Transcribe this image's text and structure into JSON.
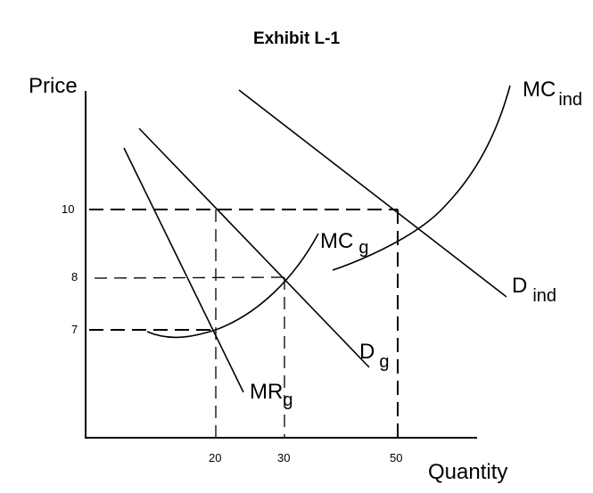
{
  "title": "Exhibit L-1",
  "axes": {
    "y_label": "Price",
    "x_label": "Quantity"
  },
  "price_ticks": [
    "10",
    "8",
    "7"
  ],
  "quantity_ticks": [
    "20",
    "30",
    "50"
  ],
  "curves": {
    "mc_ind": {
      "main": "MC",
      "sub": "ind"
    },
    "d_ind": {
      "main": "D",
      "sub": "ind"
    },
    "mc_g": {
      "main": "MC",
      "sub": "g"
    },
    "d_g": {
      "main": "D",
      "sub": "g"
    },
    "mr_g": {
      "main": "MR",
      "sub": "g"
    }
  }
}
